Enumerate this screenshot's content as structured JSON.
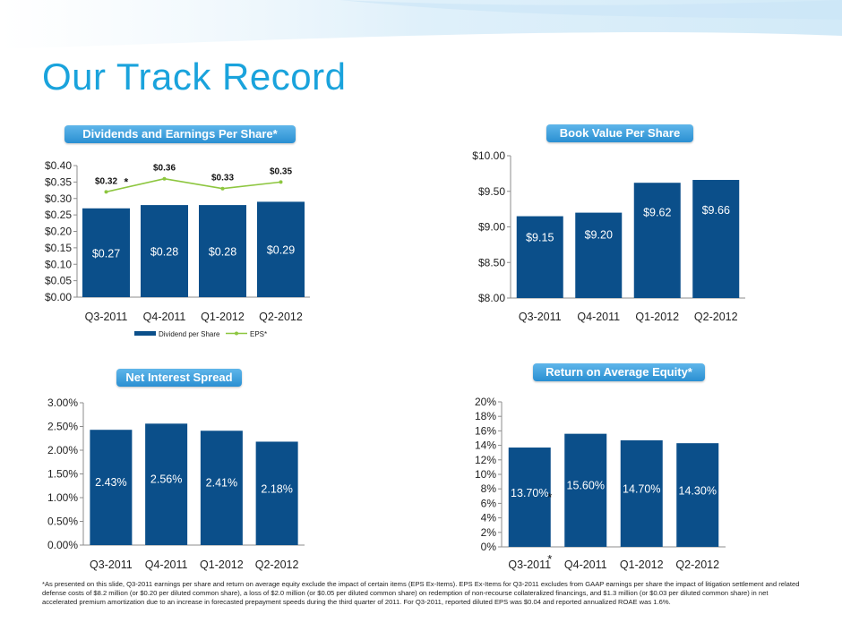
{
  "slide": {
    "title": "Our Track Record",
    "footnote": "*As presented on this slide, Q3-2011 earnings per share and return on average equity exclude the impact of certain items (EPS Ex-Items).  EPS Ex-Items for Q3-2011 excludes from GAAP earnings per share the impact of litigation settlement and related defense costs of $8.2 million (or $0.20 per diluted common share), a loss of $2.0 million (or $0.05 per diluted common share) on redemption of non-recourse collateralized financings, and $1.3 million (or $0.03 per diluted common share) in net accelerated premium amortization due to an increase in forecasted prepayment speeds during the third quarter of 2011.  For Q3-2011, reported diluted EPS was $0.04 and reported annualized ROAE was 1.6%."
  },
  "colors": {
    "bar": "#0b4f8a",
    "eps_line": "#8dc63f",
    "title": "#1aa3dc",
    "pill": "#2a8fd2"
  },
  "chart_data": [
    {
      "id": "dividends-eps",
      "type": "bar",
      "title": "Dividends and Earnings Per Share*",
      "categories": [
        "Q3-2011",
        "Q4-2011",
        "Q1-2012",
        "Q2-2012"
      ],
      "series": [
        {
          "name": "Dividend per Share",
          "type": "bar",
          "values": [
            0.27,
            0.28,
            0.28,
            0.29
          ],
          "labels": [
            "$0.27",
            "$0.28",
            "$0.28",
            "$0.29"
          ]
        },
        {
          "name": "EPS*",
          "type": "line",
          "values": [
            0.32,
            0.36,
            0.33,
            0.35
          ],
          "labels": [
            "$0.32",
            "$0.36",
            "$0.33",
            "$0.35"
          ]
        }
      ],
      "ylim": [
        0,
        0.4
      ],
      "yticks": [
        "$0.00",
        "$0.05",
        "$0.10",
        "$0.15",
        "$0.20",
        "$0.25",
        "$0.30",
        "$0.35",
        "$0.40"
      ],
      "legend": "bottom",
      "grid": false
    },
    {
      "id": "book-value",
      "type": "bar",
      "title": "Book Value Per Share",
      "categories": [
        "Q3-2011",
        "Q4-2011",
        "Q1-2012",
        "Q2-2012"
      ],
      "series": [
        {
          "type": "bar",
          "values": [
            9.15,
            9.2,
            9.62,
            9.66
          ],
          "labels": [
            "$9.15",
            "$9.20",
            "$9.62",
            "$9.66"
          ]
        }
      ],
      "ylim": [
        8.0,
        10.0
      ],
      "yticks": [
        "$8.00",
        "$8.50",
        "$9.00",
        "$9.50",
        "$10.00"
      ],
      "grid": false
    },
    {
      "id": "net-interest-spread",
      "type": "bar",
      "title": "Net Interest Spread",
      "categories": [
        "Q3-2011",
        "Q4-2011",
        "Q1-2012",
        "Q2-2012"
      ],
      "series": [
        {
          "type": "bar",
          "values": [
            2.43,
            2.56,
            2.41,
            2.18
          ],
          "labels": [
            "2.43%",
            "2.56%",
            "2.41%",
            "2.18%"
          ]
        }
      ],
      "ylim": [
        0,
        3.0
      ],
      "yticks": [
        "0.00%",
        "0.50%",
        "1.00%",
        "1.50%",
        "2.00%",
        "2.50%",
        "3.00%"
      ],
      "grid": false
    },
    {
      "id": "roae",
      "type": "bar",
      "title": "Return on Average Equity*",
      "categories": [
        "Q3-2011",
        "Q4-2011",
        "Q1-2012",
        "Q2-2012"
      ],
      "series": [
        {
          "type": "bar",
          "values": [
            13.7,
            15.6,
            14.7,
            14.3
          ],
          "labels": [
            "13.70%",
            "15.60%",
            "14.70%",
            "14.30%"
          ]
        }
      ],
      "ylim": [
        0,
        20
      ],
      "yticks": [
        "0%",
        "2%",
        "4%",
        "6%",
        "8%",
        "10%",
        "12%",
        "14%",
        "16%",
        "18%",
        "20%"
      ],
      "annotations": [
        "*",
        "*"
      ],
      "grid": false
    }
  ]
}
